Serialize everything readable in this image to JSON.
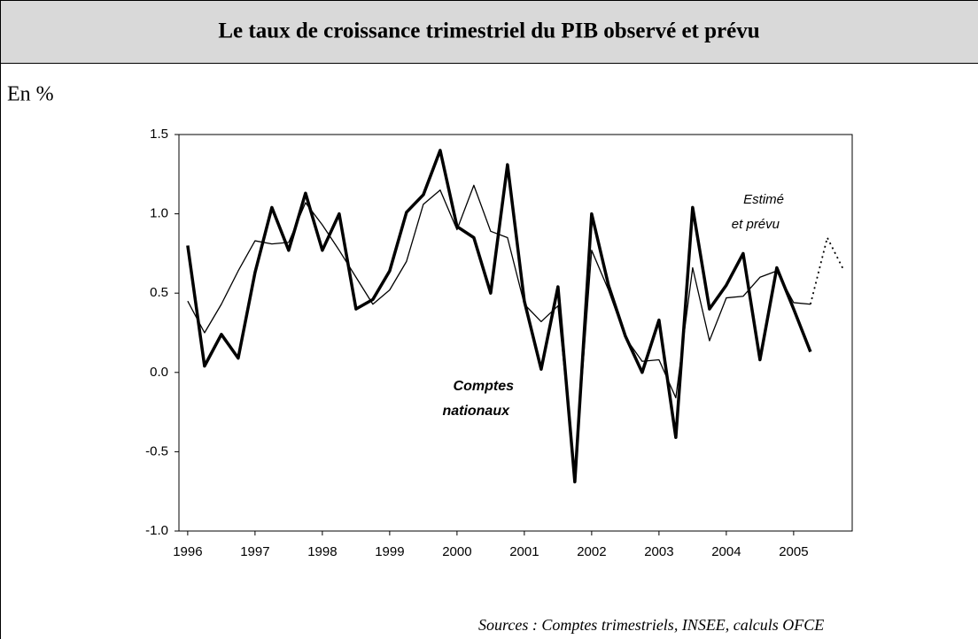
{
  "chart_data": {
    "type": "line",
    "title": "Le taux de croissance trimestriel du PIB observé et prévu",
    "y_label": "En %",
    "source": "Sources : Comptes trimestriels, INSEE, calculs OFCE",
    "x": [
      1996,
      1996.25,
      1996.5,
      1996.75,
      1997,
      1997.25,
      1997.5,
      1997.75,
      1998,
      1998.25,
      1998.5,
      1998.75,
      1999,
      1999.25,
      1999.5,
      1999.75,
      2000,
      2000.25,
      2000.5,
      2000.75,
      2001,
      2001.25,
      2001.5,
      2001.75,
      2002,
      2002.25,
      2002.5,
      2002.75,
      2003,
      2003.25,
      2003.5,
      2003.75,
      2004,
      2004.25,
      2004.5,
      2004.75,
      2005,
      2005.25,
      2005.5,
      2005.75
    ],
    "series": [
      {
        "label_lines": [
          "Comptes",
          "nationaux"
        ],
        "color": "#000000",
        "line_width": 3.5,
        "label_style": "bold-italic",
        "values": [
          0.8,
          0.04,
          0.24,
          0.09,
          0.63,
          1.04,
          0.77,
          1.13,
          0.77,
          1.0,
          0.4,
          0.46,
          0.64,
          1.01,
          1.12,
          1.4,
          0.92,
          0.85,
          0.5,
          1.31,
          0.45,
          0.02,
          0.54,
          -0.69,
          1.0,
          0.55,
          0.23,
          0.0,
          0.33,
          -0.41,
          1.04,
          0.4,
          0.55,
          0.75,
          0.08,
          0.66,
          0.4,
          0.13,
          null,
          null
        ]
      },
      {
        "label_lines": [
          "Estimé",
          "et prévu"
        ],
        "color": "#000000",
        "line_width": 1.3,
        "label_style": "italic",
        "dotted_from_index": 37,
        "values": [
          0.45,
          0.25,
          0.43,
          0.64,
          0.83,
          0.81,
          0.82,
          1.07,
          0.93,
          0.77,
          0.6,
          0.43,
          0.52,
          0.7,
          1.06,
          1.15,
          0.9,
          1.18,
          0.89,
          0.85,
          0.43,
          0.32,
          0.42,
          -0.65,
          0.77,
          0.52,
          0.22,
          0.07,
          0.08,
          -0.16,
          0.66,
          0.2,
          0.47,
          0.48,
          0.6,
          0.64,
          0.44,
          0.43,
          0.85,
          0.64
        ]
      }
    ],
    "xlim": [
      1995.87,
      2005.87
    ],
    "xticks": [
      1996,
      1997,
      1998,
      1999,
      2000,
      2001,
      2002,
      2003,
      2004,
      2005
    ],
    "ylim": [
      -1.0,
      1.5
    ],
    "yticks": [
      {
        "value": -1.0,
        "label": "-1.0"
      },
      -0.5,
      {
        "value": 0.0,
        "label": "0.0"
      },
      0.5,
      {
        "value": 1.0,
        "label": "1.0"
      },
      1.5
    ],
    "grid": false
  }
}
